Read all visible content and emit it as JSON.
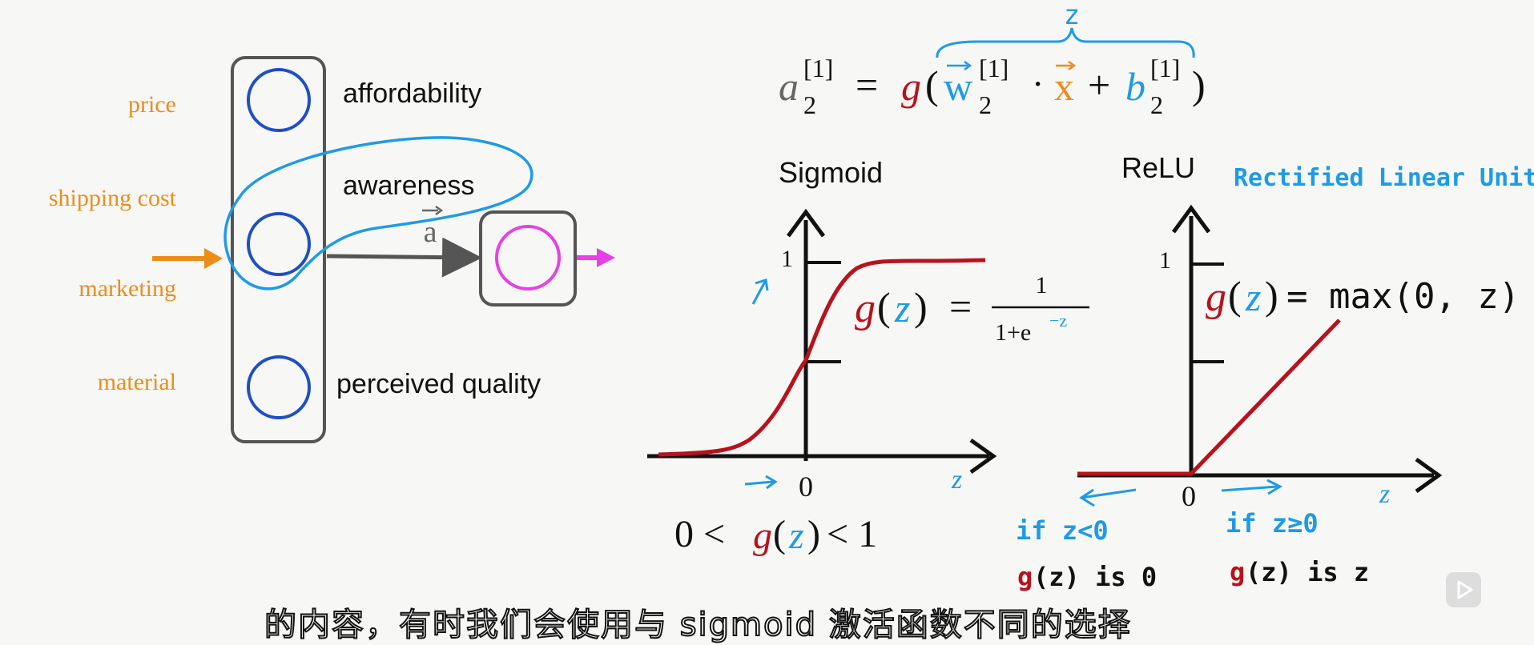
{
  "inputs": [
    "price",
    "shipping cost",
    "marketing",
    "material"
  ],
  "hidden_units": [
    "affordability",
    "awareness",
    "perceived quality"
  ],
  "activation_label": "a",
  "equation": {
    "lhs_var": "a",
    "superscript": "[1]",
    "subscript": "2",
    "equals": "=",
    "g": "g",
    "w": "w",
    "dot": "·",
    "x": "x",
    "plus": "+",
    "b": "b",
    "brace_label": "z"
  },
  "sigmoid": {
    "title": "Sigmoid",
    "y_tick": "1",
    "x_zero": "0",
    "x_label": "z",
    "formula_lhs_g": "g",
    "formula_lhs_z": "z",
    "formula_eq": "=",
    "formula_num": "1",
    "formula_den": "1+e",
    "formula_exp": "−z",
    "range_left": "0 <",
    "range_g": "g",
    "range_z": "z",
    "range_right": "< 1"
  },
  "relu": {
    "title": "ReLU",
    "full_name": "Rectified Linear Unit",
    "y_tick": "1",
    "x_zero": "0",
    "x_label": "z",
    "formula_g": "g",
    "formula_z": "z",
    "formula_rest": "= max(0, z)",
    "neg_condition": "if z<0",
    "neg_result_g": "g",
    "neg_result_rest": "(z) is 0",
    "pos_condition": "if z≥0",
    "pos_result_g": "g",
    "pos_result_rest": "(z) is z"
  },
  "subtitle": "的内容，有时我们会使用与 sigmoid 激活函数不同的选择",
  "colors": {
    "input_orange": "#ee8c1a",
    "neuron_blue": "#1f4fc2",
    "annot_blue": "#1e9be6",
    "curve_red": "#b8121c",
    "output_magenta": "#e640e6",
    "box_gray": "#555555"
  }
}
